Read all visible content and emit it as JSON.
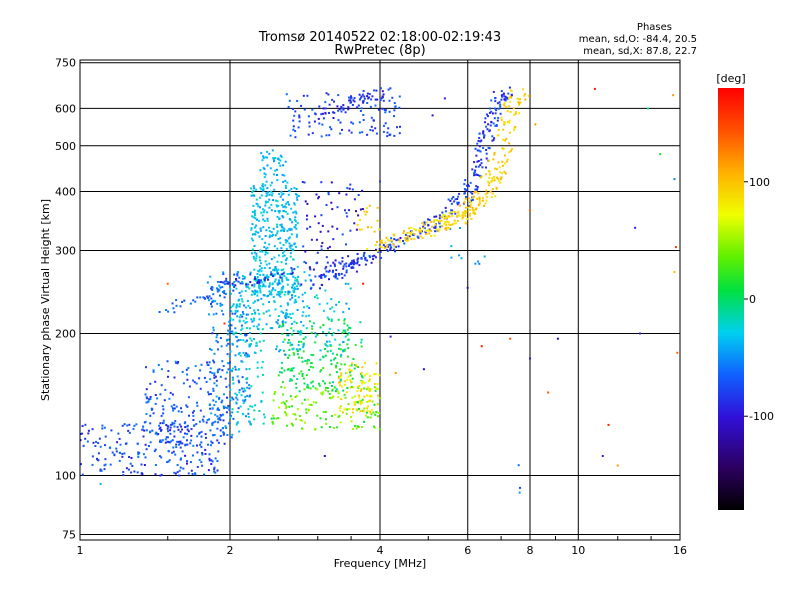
{
  "chart_data": {
    "type": "scatter",
    "title": "Tromsø 20140522 02:18:00-02:19:43",
    "subtitle": "RwPretec (8p)",
    "xlabel": "Frequency [MHz]",
    "ylabel": "Stationary phase Virtual Height [km]",
    "x_scale": "log",
    "y_scale": "log",
    "xlim": [
      1,
      16
    ],
    "ylim": [
      73,
      760
    ],
    "x_ticks": [
      1,
      2,
      4,
      6,
      8,
      10,
      16
    ],
    "x_tick_labels": [
      "1",
      "2",
      "4",
      "6",
      "8",
      "10",
      "16"
    ],
    "y_ticks": [
      75,
      100,
      200,
      300,
      400,
      500,
      600,
      750
    ],
    "y_tick_labels": [
      "75",
      "100",
      "200",
      "300",
      "400",
      "500",
      "600",
      "750"
    ],
    "grid": true,
    "phase_info": {
      "title": "Phases",
      "line1": "mean, sd,O: -84.4, 20.5",
      "line2": "mean, sd,X:  87.8, 22.7"
    },
    "colorbar": {
      "label": "[deg]",
      "min": -180,
      "max": 180,
      "ticks": [
        100,
        0,
        -100
      ],
      "tick_labels": [
        "100",
        "0",
        "-100"
      ]
    },
    "regions": [
      {
        "x": [
          1.0,
          1.9
        ],
        "h": [
          100,
          130
        ],
        "phase": [
          -115,
          -80
        ],
        "n": 220
      },
      {
        "x": [
          1.35,
          2.0
        ],
        "h": [
          115,
          175
        ],
        "phase": [
          -110,
          -75
        ],
        "n": 170
      },
      {
        "x": [
          1.8,
          2.2
        ],
        "h": [
          120,
          270
        ],
        "phase": [
          -100,
          -60
        ],
        "n": 220
      },
      {
        "x": [
          2.0,
          2.35
        ],
        "h": [
          125,
          260
        ],
        "phase": [
          -60,
          -30
        ],
        "n": 120
      },
      {
        "x": [
          2.2,
          2.75
        ],
        "h": [
          240,
          420
        ],
        "phase": [
          -70,
          -40
        ],
        "n": 380
      },
      {
        "x": [
          2.3,
          2.6
        ],
        "h": [
          420,
          490
        ],
        "phase": [
          -75,
          -45
        ],
        "n": 40
      },
      {
        "x": [
          2.0,
          2.9
        ],
        "h": [
          200,
          270
        ],
        "phase": [
          -70,
          -40
        ],
        "n": 110
      },
      {
        "x": [
          2.4,
          4.0
        ],
        "h": [
          125,
          155
        ],
        "phase": [
          -10,
          60
        ],
        "n": 150
      },
      {
        "x": [
          2.5,
          3.7
        ],
        "h": [
          150,
          215
        ],
        "phase": [
          -40,
          10
        ],
        "n": 190
      },
      {
        "x": [
          2.4,
          3.5
        ],
        "h": [
          180,
          260
        ],
        "phase": [
          -80,
          -30
        ],
        "n": 90
      },
      {
        "x": [
          3.3,
          4.0
        ],
        "h": [
          135,
          175
        ],
        "phase": [
          60,
          100
        ],
        "n": 90
      },
      {
        "x": [
          2.8,
          3.7
        ],
        "h": [
          280,
          420
        ],
        "phase": [
          -130,
          -90
        ],
        "n": 70
      },
      {
        "x": [
          3.6,
          4.0
        ],
        "h": [
          320,
          380
        ],
        "phase": [
          80,
          110
        ],
        "n": 15
      },
      {
        "x": [
          2.6,
          4.4
        ],
        "h": [
          520,
          650
        ],
        "phase": [
          -110,
          -85
        ],
        "n": 110
      },
      {
        "x": [
          5.5,
          6.5
        ],
        "h": [
          280,
          340
        ],
        "phase": [
          -80,
          -60
        ],
        "n": 10
      },
      {
        "x": [
          6.8,
          7.8
        ],
        "h": [
          80,
          120
        ],
        "phase": [
          -100,
          -60
        ],
        "n": 3
      }
    ],
    "traces": [
      {
        "path": [
          [
            2.8,
            250
          ],
          [
            3.4,
            275
          ],
          [
            4.0,
            300
          ],
          [
            4.6,
            320
          ],
          [
            5.2,
            345
          ],
          [
            5.8,
            380
          ],
          [
            6.2,
            430
          ],
          [
            6.5,
            510
          ],
          [
            6.8,
            600
          ],
          [
            7.1,
            650
          ]
        ],
        "hspread": 0.03,
        "fspread": 0.04,
        "phase": [
          -115,
          -85
        ],
        "n": 300
      },
      {
        "path": [
          [
            3.8,
            300
          ],
          [
            4.5,
            320
          ],
          [
            5.0,
            330
          ],
          [
            5.5,
            345
          ],
          [
            6.0,
            360
          ],
          [
            6.5,
            400
          ],
          [
            7.0,
            470
          ],
          [
            7.3,
            560
          ],
          [
            7.6,
            650
          ]
        ],
        "hspread": 0.03,
        "fspread": 0.05,
        "phase": [
          75,
          110
        ],
        "n": 280
      },
      {
        "path": [
          [
            1.45,
            220
          ],
          [
            1.6,
            232
          ],
          [
            1.75,
            240
          ],
          [
            1.9,
            248
          ],
          [
            2.0,
            255
          ]
        ],
        "hspread": 0.02,
        "fspread": 0.02,
        "phase": [
          -100,
          -80
        ],
        "n": 35
      },
      {
        "path": [
          [
            1.9,
            260
          ],
          [
            2.2,
            255
          ],
          [
            2.6,
            270
          ],
          [
            3.2,
            280
          ],
          [
            3.9,
            290
          ]
        ],
        "hspread": 0.015,
        "fspread": 0.02,
        "phase": [
          -120,
          -90
        ],
        "n": 60
      },
      {
        "path": [
          [
            2.9,
            570
          ],
          [
            3.2,
            590
          ],
          [
            3.5,
            620
          ],
          [
            3.8,
            640
          ],
          [
            4.2,
            650
          ]
        ],
        "hspread": 0.03,
        "fspread": 0.03,
        "phase": [
          -120,
          -95
        ],
        "n": 60
      }
    ],
    "scattered": [
      {
        "x": 1.5,
        "h": 255,
        "phase": 140
      },
      {
        "x": 1.95,
        "h": 210,
        "phase": 160
      },
      {
        "x": 3.7,
        "h": 255,
        "phase": 170
      },
      {
        "x": 4.2,
        "h": 197,
        "phase": -110
      },
      {
        "x": 4.3,
        "h": 165,
        "phase": 120
      },
      {
        "x": 4.9,
        "h": 168,
        "phase": -120
      },
      {
        "x": 6.4,
        "h": 188,
        "phase": 170
      },
      {
        "x": 6.0,
        "h": 250,
        "phase": -120
      },
      {
        "x": 7.3,
        "h": 195,
        "phase": 150
      },
      {
        "x": 8.2,
        "h": 555,
        "phase": 120
      },
      {
        "x": 8.7,
        "h": 150,
        "phase": 150
      },
      {
        "x": 8.0,
        "h": 365,
        "phase": 140
      },
      {
        "x": 8.0,
        "h": 177,
        "phase": -110
      },
      {
        "x": 9.1,
        "h": 195,
        "phase": -130
      },
      {
        "x": 10.8,
        "h": 660,
        "phase": 170
      },
      {
        "x": 11.5,
        "h": 128,
        "phase": 170
      },
      {
        "x": 12.0,
        "h": 105,
        "phase": 120
      },
      {
        "x": 11.2,
        "h": 110,
        "phase": -110
      },
      {
        "x": 13.0,
        "h": 335,
        "phase": -110
      },
      {
        "x": 13.3,
        "h": 200,
        "phase": -110
      },
      {
        "x": 13.8,
        "h": 600,
        "phase": -30
      },
      {
        "x": 14.6,
        "h": 480,
        "phase": 0
      },
      {
        "x": 15.6,
        "h": 425,
        "phase": -80
      },
      {
        "x": 15.7,
        "h": 305,
        "phase": 160
      },
      {
        "x": 15.6,
        "h": 270,
        "phase": 100
      },
      {
        "x": 15.8,
        "h": 182,
        "phase": 140
      },
      {
        "x": 15.5,
        "h": 640,
        "phase": 120
      },
      {
        "x": 4.0,
        "h": 420,
        "phase": -100
      },
      {
        "x": 3.1,
        "h": 110,
        "phase": -120
      },
      {
        "x": 1.1,
        "h": 96,
        "phase": -60
      },
      {
        "x": 1.1,
        "h": 103,
        "phase": -100
      },
      {
        "x": 5.1,
        "h": 580,
        "phase": -120
      },
      {
        "x": 5.4,
        "h": 630,
        "phase": -110
      }
    ]
  }
}
